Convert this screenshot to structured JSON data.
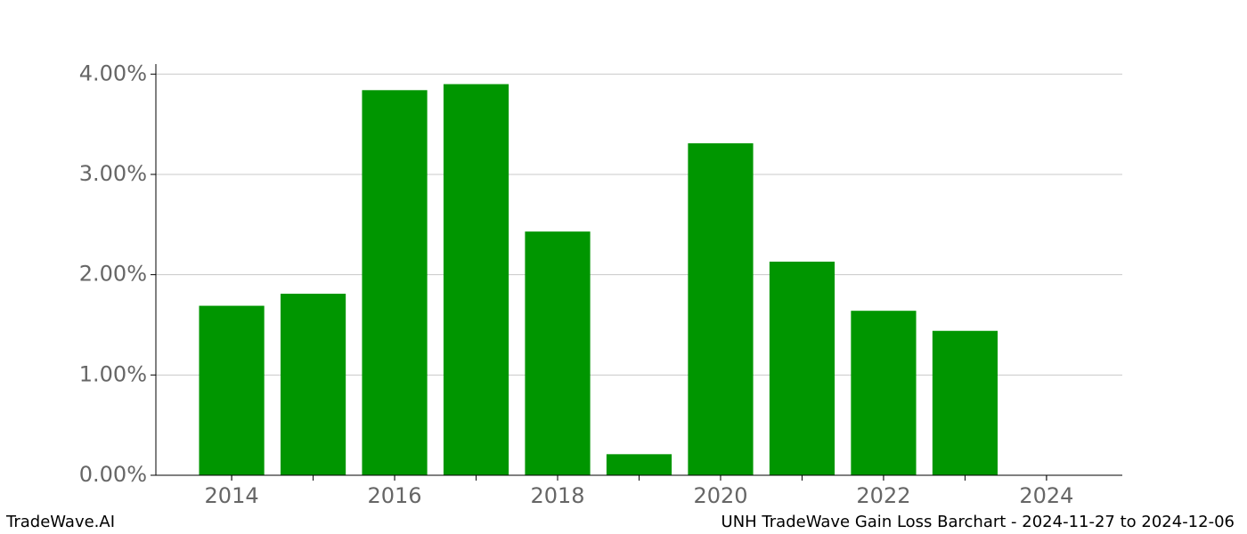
{
  "chart_data": {
    "type": "bar",
    "title": "UNH TradeWave Gain Loss Barchart - 2024-11-27 to 2024-12-06",
    "brand": "TradeWave.AI",
    "x": [
      2014,
      2015,
      2016,
      2017,
      2018,
      2019,
      2020,
      2021,
      2022,
      2023,
      2024
    ],
    "values": [
      1.69,
      1.81,
      3.84,
      3.9,
      2.43,
      0.21,
      3.31,
      2.13,
      1.64,
      1.44,
      0
    ],
    "color": "#009600",
    "xlim": [
      2013.07,
      2024.93
    ],
    "xticks": [
      2014,
      2016,
      2018,
      2020,
      2022,
      2024
    ],
    "ylim": [
      0,
      4.1
    ],
    "yticks": [
      {
        "value": 0,
        "label": "0.00%"
      },
      {
        "value": 1,
        "label": "1.00%"
      },
      {
        "value": 2,
        "label": "2.00%"
      },
      {
        "value": 3,
        "label": "3.00%"
      },
      {
        "value": 4,
        "label": "4.00%"
      }
    ],
    "grid": true
  }
}
